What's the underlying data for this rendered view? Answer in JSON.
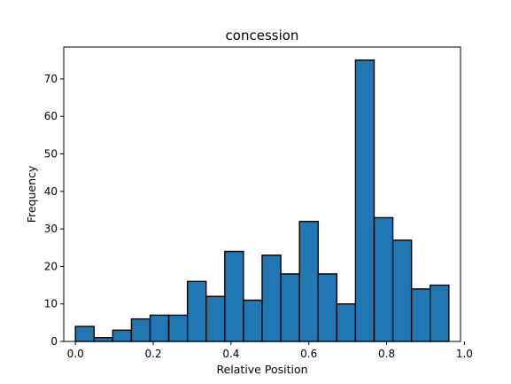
{
  "chart_data": {
    "type": "bar",
    "title": "concession",
    "xlabel": "Relative Position",
    "ylabel": "Frequency",
    "xlim": [
      -0.03,
      0.99
    ],
    "ylim": [
      0,
      78.5
    ],
    "bin_width": 0.048,
    "bins": [
      {
        "x0": 0.0,
        "x1": 0.048,
        "count": 4
      },
      {
        "x0": 0.048,
        "x1": 0.096,
        "count": 1
      },
      {
        "x0": 0.096,
        "x1": 0.144,
        "count": 3
      },
      {
        "x0": 0.144,
        "x1": 0.192,
        "count": 6
      },
      {
        "x0": 0.192,
        "x1": 0.24,
        "count": 7
      },
      {
        "x0": 0.24,
        "x1": 0.288,
        "count": 7
      },
      {
        "x0": 0.288,
        "x1": 0.336,
        "count": 16
      },
      {
        "x0": 0.336,
        "x1": 0.384,
        "count": 12
      },
      {
        "x0": 0.384,
        "x1": 0.432,
        "count": 24
      },
      {
        "x0": 0.432,
        "x1": 0.48,
        "count": 11
      },
      {
        "x0": 0.48,
        "x1": 0.528,
        "count": 23
      },
      {
        "x0": 0.528,
        "x1": 0.576,
        "count": 18
      },
      {
        "x0": 0.576,
        "x1": 0.624,
        "count": 32
      },
      {
        "x0": 0.624,
        "x1": 0.672,
        "count": 18
      },
      {
        "x0": 0.672,
        "x1": 0.72,
        "count": 10
      },
      {
        "x0": 0.72,
        "x1": 0.768,
        "count": 75
      },
      {
        "x0": 0.768,
        "x1": 0.816,
        "count": 33
      },
      {
        "x0": 0.816,
        "x1": 0.864,
        "count": 27
      },
      {
        "x0": 0.864,
        "x1": 0.912,
        "count": 14
      },
      {
        "x0": 0.912,
        "x1": 0.96,
        "count": 15
      }
    ],
    "x_ticks": [
      0.0,
      0.2,
      0.4,
      0.6,
      0.8,
      1.0
    ],
    "x_tick_labels": [
      "0.0",
      "0.2",
      "0.4",
      "0.6",
      "0.8",
      "1.0"
    ],
    "y_ticks": [
      0,
      10,
      20,
      30,
      40,
      50,
      60,
      70
    ],
    "y_tick_labels": [
      "0",
      "10",
      "20",
      "30",
      "40",
      "50",
      "60",
      "70"
    ],
    "bar_color": "#1f77b4",
    "edge_color": "#000000",
    "grid": false,
    "legend": "none"
  }
}
